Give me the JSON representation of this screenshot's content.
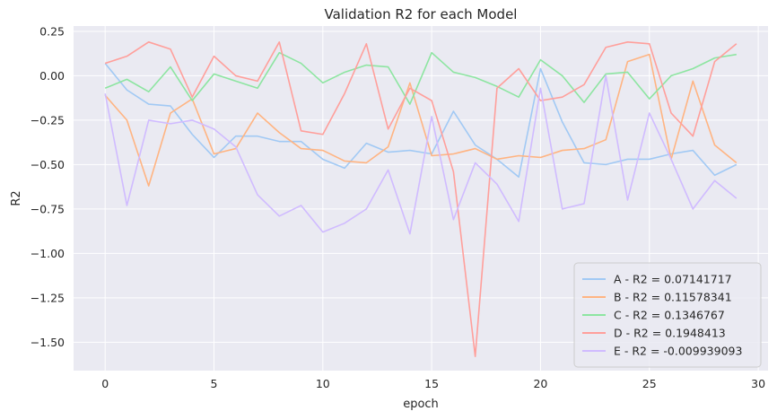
{
  "chart_data": {
    "type": "line",
    "title": "Validation R2 for each Model",
    "xlabel": "epoch",
    "ylabel": "R2",
    "xlim": [
      -1.45,
      30.45
    ],
    "ylim": [
      -1.66,
      0.28
    ],
    "xticks": [
      0,
      5,
      10,
      15,
      20,
      25,
      30
    ],
    "yticks": [
      0.25,
      0.0,
      -0.25,
      -0.5,
      -0.75,
      -1.0,
      -1.25,
      -1.5
    ],
    "ytick_labels": [
      "0.25",
      "0.00",
      "−0.25",
      "−0.50",
      "−0.75",
      "−1.00",
      "−1.25",
      "−1.50"
    ],
    "grid": true,
    "legend_position": "lower-right",
    "x": [
      0,
      1,
      2,
      3,
      4,
      5,
      6,
      7,
      8,
      9,
      10,
      11,
      12,
      13,
      14,
      15,
      16,
      17,
      18,
      19,
      20,
      21,
      22,
      23,
      24,
      25,
      26,
      27,
      28,
      29
    ],
    "series": [
      {
        "name": "A - R2 = 0.07141717",
        "color": "#a1c9f4",
        "values": [
          0.07,
          -0.08,
          -0.16,
          -0.17,
          -0.33,
          -0.46,
          -0.34,
          -0.34,
          -0.37,
          -0.37,
          -0.47,
          -0.52,
          -0.38,
          -0.43,
          -0.42,
          -0.44,
          -0.2,
          -0.39,
          -0.47,
          -0.57,
          0.04,
          -0.26,
          -0.49,
          -0.5,
          -0.47,
          -0.47,
          -0.44,
          -0.42,
          -0.56,
          -0.5
        ]
      },
      {
        "name": "B - R2 = 0.11578341",
        "color": "#ffb482",
        "values": [
          -0.11,
          -0.25,
          -0.62,
          -0.21,
          -0.13,
          -0.44,
          -0.41,
          -0.21,
          -0.32,
          -0.41,
          -0.42,
          -0.48,
          -0.49,
          -0.4,
          -0.04,
          -0.45,
          -0.44,
          -0.41,
          -0.47,
          -0.45,
          -0.46,
          -0.42,
          -0.41,
          -0.36,
          0.08,
          0.12,
          -0.47,
          -0.03,
          -0.39,
          -0.49
        ]
      },
      {
        "name": "C - R2 = 0.1346767",
        "color": "#8de5a1",
        "values": [
          -0.07,
          -0.02,
          -0.09,
          0.05,
          -0.14,
          0.01,
          -0.03,
          -0.07,
          0.13,
          0.07,
          -0.04,
          0.02,
          0.06,
          0.05,
          -0.16,
          0.13,
          0.02,
          -0.01,
          -0.06,
          -0.12,
          0.09,
          0.0,
          -0.15,
          0.01,
          0.02,
          -0.13,
          0.0,
          0.04,
          0.1,
          0.12
        ]
      },
      {
        "name": "D - R2 = 0.1948413",
        "color": "#ff9f9b",
        "values": [
          0.07,
          0.11,
          0.19,
          0.15,
          -0.12,
          0.11,
          0.0,
          -0.03,
          0.19,
          -0.31,
          -0.33,
          -0.1,
          0.18,
          -0.3,
          -0.07,
          -0.14,
          -0.54,
          -1.58,
          -0.07,
          0.04,
          -0.14,
          -0.12,
          -0.05,
          0.16,
          0.19,
          0.18,
          -0.21,
          -0.34,
          0.08,
          0.18
        ]
      },
      {
        "name": "E - R2 = -0.009939093",
        "color": "#d0bbff",
        "values": [
          -0.1,
          -0.73,
          -0.25,
          -0.27,
          -0.25,
          -0.3,
          -0.4,
          -0.67,
          -0.79,
          -0.73,
          -0.88,
          -0.83,
          -0.75,
          -0.53,
          -0.89,
          -0.23,
          -0.81,
          -0.49,
          -0.61,
          -0.82,
          -0.07,
          -0.75,
          -0.72,
          0.0,
          -0.7,
          -0.21,
          -0.47,
          -0.75,
          -0.59,
          -0.69
        ]
      }
    ]
  }
}
